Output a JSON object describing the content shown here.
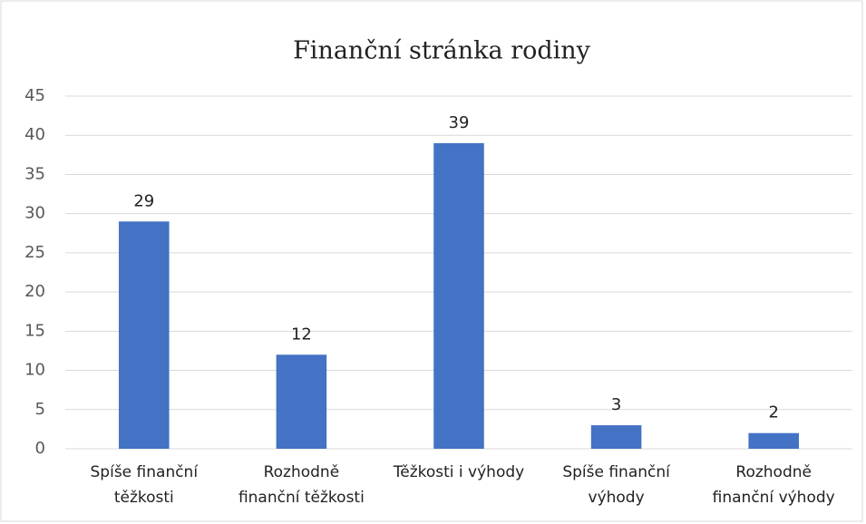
{
  "chart_data": {
    "type": "bar",
    "title": "Finanční stránka rodiny",
    "categories": [
      "Spíše finanční\ntěžkosti",
      "Rozhodně\nfinanční těžkosti",
      "Těžkosti i výhody",
      "Spíše finanční\nvýhody",
      "Rozhodně\nfinanční výhody"
    ],
    "values": [
      29,
      12,
      39,
      3,
      2
    ],
    "color": "#4472c4",
    "ylim": [
      0,
      45
    ],
    "yticks": [
      0,
      5,
      10,
      15,
      20,
      25,
      30,
      35,
      40,
      45
    ],
    "grid": true
  }
}
